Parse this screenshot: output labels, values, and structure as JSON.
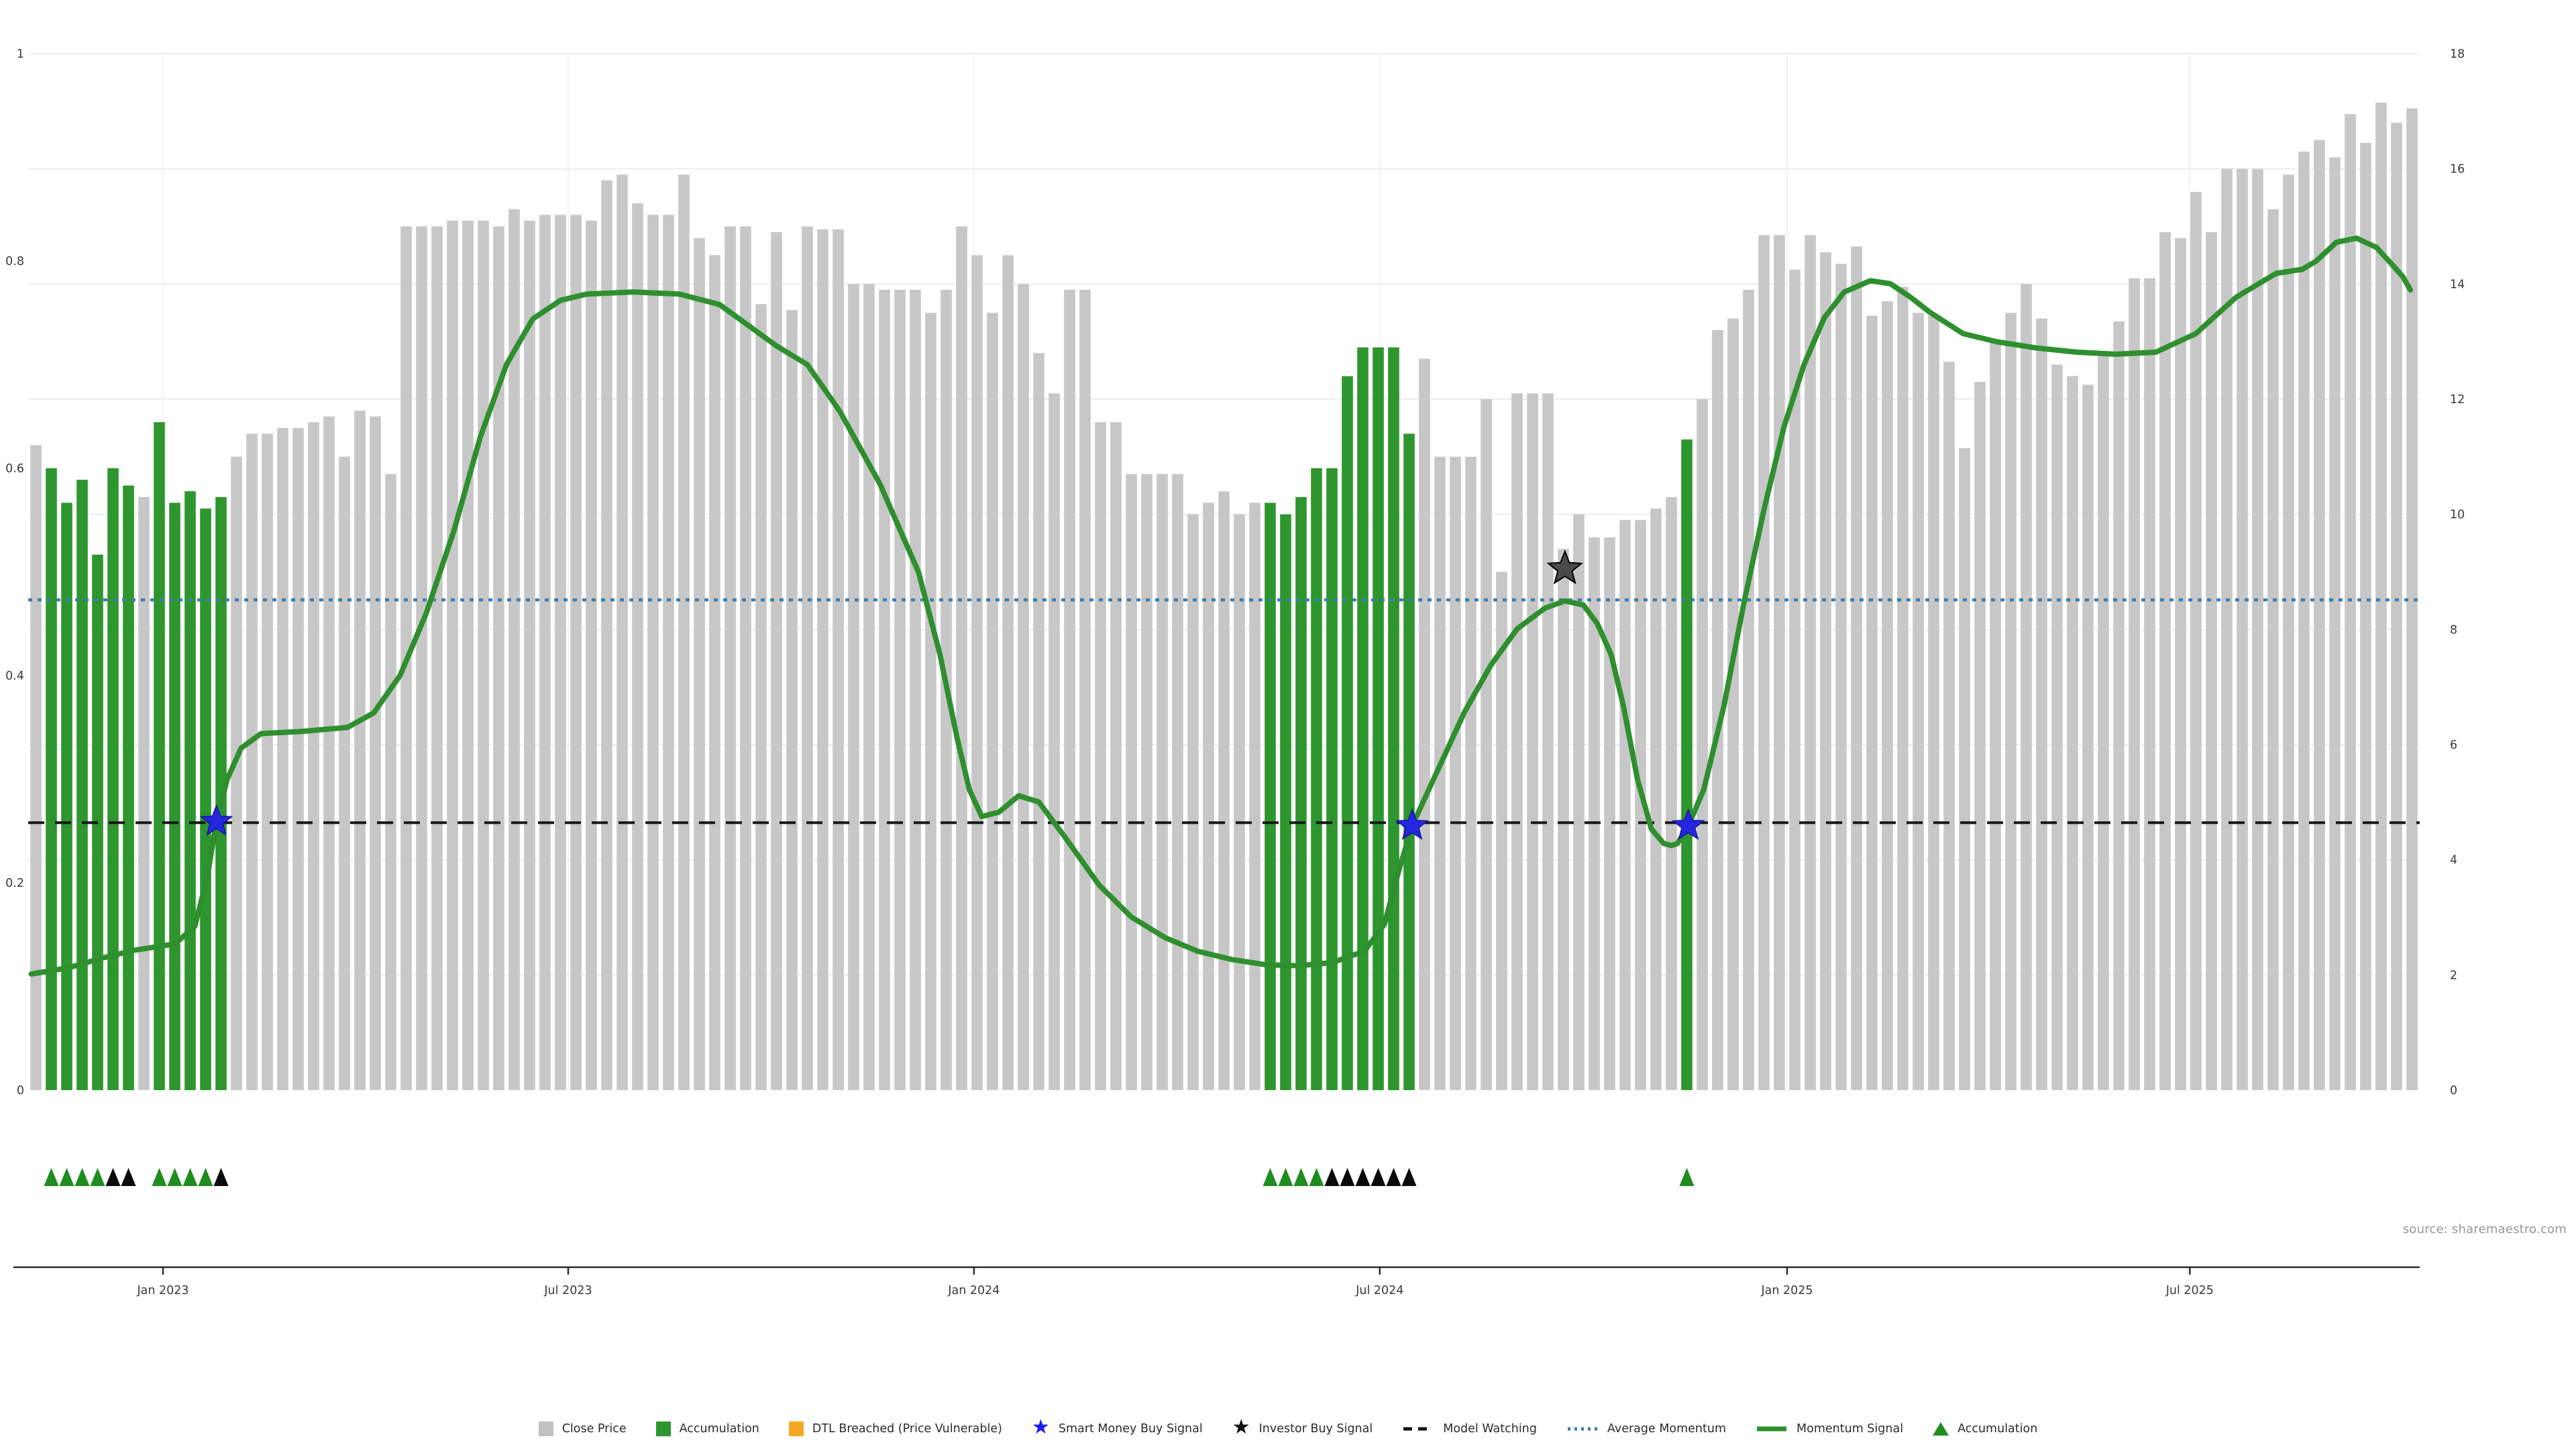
{
  "source": "source: sharemaestro.com",
  "legend": {
    "items": [
      {
        "type": "square",
        "color": "#c1c1c1",
        "label": "Close Price"
      },
      {
        "type": "square",
        "color": "#2e962e",
        "label": "Accumulation"
      },
      {
        "type": "square",
        "color": "#f5a623",
        "label": "DTL Breached (Price Vulnerable)"
      },
      {
        "type": "star",
        "color": "#1b1bf0",
        "label": "Smart Money Buy Signal"
      },
      {
        "type": "star",
        "color": "#111111",
        "label": "Investor Buy Signal"
      },
      {
        "type": "dash",
        "color": "#111111",
        "label": "Model Watching"
      },
      {
        "type": "dots",
        "color": "#3f7cad",
        "label": "Average Momentum"
      },
      {
        "type": "line",
        "color": "#2e8f2e",
        "label": "Momentum Signal"
      },
      {
        "type": "triangle",
        "color": "#1f8c1f",
        "label": "Accumulation"
      }
    ]
  },
  "chart_data": {
    "type": "bar",
    "description": "Weekly close-price bars (right axis 0-18) with normalized momentum signal line (left axis 0-1), accumulation weeks highlighted green, buy-signal star markers and accumulation triangle markers",
    "x_axis": {
      "ticks": [
        {
          "label": "Jan 2023",
          "i": 8.24
        },
        {
          "label": "Jul 2023",
          "i": 34.5
        },
        {
          "label": "Jan 2024",
          "i": 60.8
        },
        {
          "label": "Jul 2024",
          "i": 87.1
        },
        {
          "label": "Jan 2025",
          "i": 113.5
        },
        {
          "label": "Jul 2025",
          "i": 139.6
        }
      ]
    },
    "left_axis": {
      "label_values": [
        {
          "t": "0",
          "v": 0
        },
        {
          "t": "0.2",
          "v": 0.2
        },
        {
          "t": "0.4",
          "v": 0.4
        },
        {
          "t": "0.6",
          "v": 0.6
        },
        {
          "t": "0.8",
          "v": 0.8
        },
        {
          "t": "1",
          "v": 1
        }
      ],
      "range": [
        0,
        1
      ]
    },
    "right_axis": {
      "label_values": [
        {
          "t": "0",
          "v": 0
        },
        {
          "t": "2",
          "v": 2
        },
        {
          "t": "4",
          "v": 4
        },
        {
          "t": "6",
          "v": 6
        },
        {
          "t": "8",
          "v": 8
        },
        {
          "t": "10",
          "v": 10
        },
        {
          "t": "12",
          "v": 12
        },
        {
          "t": "14",
          "v": 14
        },
        {
          "t": "16",
          "v": 16
        },
        {
          "t": "18",
          "v": 18
        }
      ],
      "range": [
        0,
        18
      ]
    },
    "close_price_values": [
      11.2,
      10.8,
      10.2,
      10.6,
      9.3,
      10.8,
      10.5,
      10.3,
      11.6,
      10.2,
      10.4,
      10.1,
      10.3,
      11.0,
      11.4,
      11.4,
      11.5,
      11.5,
      11.6,
      11.7,
      11.0,
      11.8,
      11.7,
      10.7,
      15.0,
      15.0,
      15.0,
      15.1,
      15.1,
      15.1,
      15.0,
      15.3,
      15.1,
      15.2,
      15.2,
      15.2,
      15.1,
      15.8,
      15.9,
      15.4,
      15.2,
      15.2,
      15.9,
      14.8,
      14.5,
      15.0,
      15.0,
      13.65,
      14.9,
      13.55,
      15.0,
      14.95,
      14.95,
      14.0,
      14.0,
      13.9,
      13.9,
      13.9,
      13.5,
      13.9,
      15.0,
      14.5,
      13.5,
      14.5,
      14.0,
      12.8,
      12.1,
      13.9,
      13.9,
      11.6,
      11.6,
      10.7,
      10.7,
      10.7,
      10.7,
      10.0,
      10.2,
      10.4,
      10.0,
      10.2,
      10.2,
      10.0,
      10.3,
      10.8,
      10.8,
      12.4,
      12.9,
      12.9,
      12.9,
      11.4,
      12.7,
      11.0,
      11.0,
      11.0,
      12.0,
      9.0,
      12.1,
      12.1,
      12.1,
      9.4,
      10.0,
      9.6,
      9.6,
      9.9,
      9.9,
      10.1,
      10.3,
      11.3,
      12.0,
      13.2,
      13.4,
      13.9,
      14.85,
      14.85,
      14.25,
      14.85,
      14.55,
      14.35,
      14.65,
      13.45,
      13.7,
      13.95,
      13.5,
      13.45,
      12.65,
      11.15,
      12.3,
      13.0,
      13.5,
      14.0,
      13.4,
      12.6,
      12.4,
      12.25,
      12.8,
      13.35,
      14.1,
      14.1,
      14.9,
      14.8,
      15.6,
      14.9,
      16.0,
      16.0,
      16.0,
      15.3,
      15.9,
      16.3,
      16.5,
      16.2,
      16.95,
      16.45,
      17.15,
      16.8,
      17.05
    ],
    "accumulation_bar_indices": [
      1,
      2,
      3,
      4,
      5,
      6,
      8,
      9,
      10,
      11,
      12,
      80,
      81,
      82,
      83,
      84,
      85,
      86,
      87,
      88,
      89,
      107
    ],
    "momentum_signal": [
      [
        -0.3,
        0.112
      ],
      [
        2.1,
        0.118
      ],
      [
        4.2,
        0.127
      ],
      [
        6.4,
        0.135
      ],
      [
        9.0,
        0.141
      ],
      [
        10.3,
        0.158
      ],
      [
        11.1,
        0.205
      ],
      [
        11.7,
        0.259
      ],
      [
        12.4,
        0.3
      ],
      [
        13.3,
        0.33
      ],
      [
        14.6,
        0.344
      ],
      [
        17.2,
        0.346
      ],
      [
        20.2,
        0.35
      ],
      [
        21.9,
        0.364
      ],
      [
        23.6,
        0.4
      ],
      [
        25.3,
        0.46
      ],
      [
        27.1,
        0.54
      ],
      [
        28.8,
        0.63
      ],
      [
        30.5,
        0.7
      ],
      [
        32.2,
        0.744
      ],
      [
        34.0,
        0.762
      ],
      [
        35.7,
        0.768
      ],
      [
        38.7,
        0.77
      ],
      [
        41.7,
        0.768
      ],
      [
        44.3,
        0.758
      ],
      [
        46.9,
        0.73
      ],
      [
        48.0,
        0.718
      ],
      [
        50.0,
        0.7
      ],
      [
        52.1,
        0.655
      ],
      [
        54.7,
        0.585
      ],
      [
        57.2,
        0.5
      ],
      [
        58.6,
        0.42
      ],
      [
        59.7,
        0.34
      ],
      [
        60.5,
        0.29
      ],
      [
        61.3,
        0.264
      ],
      [
        62.4,
        0.268
      ],
      [
        63.7,
        0.284
      ],
      [
        65.0,
        0.278
      ],
      [
        66.7,
        0.244
      ],
      [
        68.9,
        0.198
      ],
      [
        71.0,
        0.167
      ],
      [
        73.2,
        0.147
      ],
      [
        75.3,
        0.134
      ],
      [
        77.5,
        0.126
      ],
      [
        79.7,
        0.121
      ],
      [
        81.8,
        0.12
      ],
      [
        84.0,
        0.123
      ],
      [
        86.1,
        0.134
      ],
      [
        87.4,
        0.16
      ],
      [
        88.3,
        0.21
      ],
      [
        89.2,
        0.255
      ],
      [
        90.9,
        0.31
      ],
      [
        92.6,
        0.365
      ],
      [
        94.3,
        0.41
      ],
      [
        96.0,
        0.445
      ],
      [
        97.8,
        0.465
      ],
      [
        99.1,
        0.472
      ],
      [
        100.3,
        0.468
      ],
      [
        101.2,
        0.45
      ],
      [
        102.1,
        0.42
      ],
      [
        102.9,
        0.37
      ],
      [
        103.8,
        0.3
      ],
      [
        104.7,
        0.252
      ],
      [
        105.5,
        0.238
      ],
      [
        106.0,
        0.236
      ],
      [
        106.4,
        0.238
      ],
      [
        107.1,
        0.255
      ],
      [
        108.1,
        0.29
      ],
      [
        109.4,
        0.37
      ],
      [
        110.7,
        0.47
      ],
      [
        112.0,
        0.56
      ],
      [
        113.3,
        0.64
      ],
      [
        114.6,
        0.7
      ],
      [
        115.9,
        0.745
      ],
      [
        117.2,
        0.77
      ],
      [
        118.9,
        0.781
      ],
      [
        120.2,
        0.778
      ],
      [
        121.5,
        0.765
      ],
      [
        122.8,
        0.75
      ],
      [
        124.9,
        0.73
      ],
      [
        127.1,
        0.722
      ],
      [
        129.7,
        0.716
      ],
      [
        132.3,
        0.712
      ],
      [
        134.8,
        0.71
      ],
      [
        137.4,
        0.712
      ],
      [
        140.0,
        0.73
      ],
      [
        142.6,
        0.765
      ],
      [
        145.2,
        0.788
      ],
      [
        146.9,
        0.792
      ],
      [
        147.8,
        0.8
      ],
      [
        149.1,
        0.818
      ],
      [
        150.4,
        0.822
      ],
      [
        151.7,
        0.813
      ],
      [
        152.5,
        0.8
      ],
      [
        153.4,
        0.785
      ],
      [
        153.9,
        0.772
      ]
    ],
    "model_watching_level": 0.258,
    "average_momentum_level": 0.473,
    "smart_money_buy_signals": [
      [
        11.7,
        0.259
      ],
      [
        89.2,
        0.255
      ],
      [
        107.1,
        0.255
      ]
    ],
    "investor_buy_signals": [
      [
        99.1,
        0.503
      ]
    ],
    "accumulation_triangles": {
      "green_indices": [
        1,
        2,
        3,
        4,
        8,
        9,
        10,
        11,
        80,
        81,
        82,
        83,
        107
      ],
      "black_indices": [
        5,
        6,
        12,
        84,
        85,
        86,
        87,
        88,
        89
      ]
    },
    "colors": {
      "close_bar": "#c7c7c7",
      "accumulation_bar": "#2e962e",
      "momentum_line": "#2f8f2f",
      "average_momentum_line": "#3f7cad",
      "model_watching_line": "#151515",
      "smart_money_star": "#2626e0",
      "investor_star": "#4a4a4a",
      "grid": "#e9edf1",
      "vgrid": "#f2f2f4",
      "axis_text": "#3a3a3a",
      "spine": "#2a2a2a",
      "triangle_green": "#1f8c1f",
      "triangle_black": "#0a0a0a"
    },
    "grid": true,
    "legend_position": "bottom-center",
    "title": ""
  }
}
